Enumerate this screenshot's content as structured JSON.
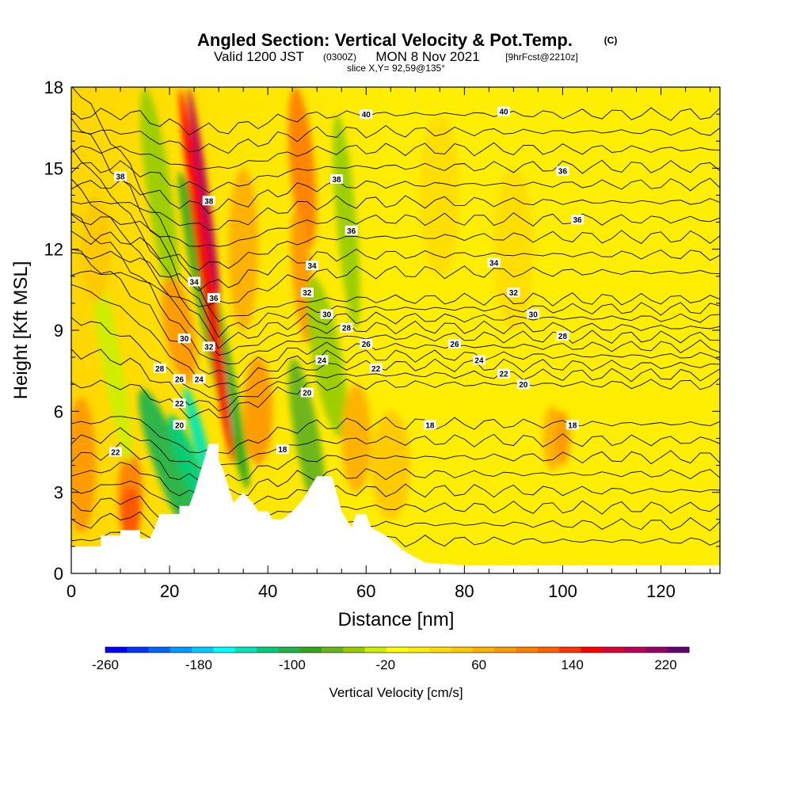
{
  "header": {
    "title_main": "Angled Section: Vertical Velocity & Pot.Temp.",
    "title_suffix": "(C)",
    "valid_1": "Valid 1200 JST",
    "valid_2": "(0300Z)",
    "valid_3": "MON 8 Nov 2021",
    "valid_4": "[9hrFcst@2210z]",
    "slice": "slice X,Y= 92,59@135°"
  },
  "chart_data": {
    "type": "heatmap",
    "xlabel": "Distance [nm]",
    "ylabel": "Height [Kft MSL]",
    "xlim": [
      0,
      132
    ],
    "ylim": [
      0,
      18
    ],
    "x_ticks": [
      0,
      20,
      40,
      60,
      80,
      100,
      120
    ],
    "y_ticks": [
      0,
      3,
      6,
      9,
      12,
      15,
      18
    ],
    "colorbar": {
      "label": "Vertical Velocity [cm/s]",
      "range": [
        -260,
        240
      ],
      "tick_values": [
        -260,
        -180,
        -100,
        -20,
        60,
        140,
        220
      ],
      "colors": [
        "#0000ff",
        "#0033ff",
        "#0066ff",
        "#0099ff",
        "#00ccff",
        "#00ffff",
        "#00e6b8",
        "#00cc7a",
        "#22b34d",
        "#33a61a",
        "#66b31a",
        "#99cc00",
        "#ccee00",
        "#ffff00",
        "#ffee00",
        "#ffdd00",
        "#ffc800",
        "#ffb000",
        "#ff9900",
        "#ff8000",
        "#ff6000",
        "#ff3300",
        "#ff0000",
        "#dd0033",
        "#bb0055",
        "#990066",
        "#660077"
      ]
    },
    "contour_labels": [
      {
        "x": 10,
        "y": 14.7,
        "label": "38"
      },
      {
        "x": 60,
        "y": 17.0,
        "label": "40"
      },
      {
        "x": 88,
        "y": 17.1,
        "label": "40"
      },
      {
        "x": 100,
        "y": 14.9,
        "label": "36"
      },
      {
        "x": 54,
        "y": 14.6,
        "label": "38"
      },
      {
        "x": 28,
        "y": 13.8,
        "label": "38"
      },
      {
        "x": 57,
        "y": 12.7,
        "label": "36"
      },
      {
        "x": 103,
        "y": 13.1,
        "label": "36"
      },
      {
        "x": 49,
        "y": 11.4,
        "label": "34"
      },
      {
        "x": 86,
        "y": 11.5,
        "label": "34"
      },
      {
        "x": 25,
        "y": 10.8,
        "label": "34"
      },
      {
        "x": 29,
        "y": 10.2,
        "label": "36"
      },
      {
        "x": 48,
        "y": 10.4,
        "label": "32"
      },
      {
        "x": 90,
        "y": 10.4,
        "label": "32"
      },
      {
        "x": 52,
        "y": 9.6,
        "label": "30"
      },
      {
        "x": 94,
        "y": 9.6,
        "label": "30"
      },
      {
        "x": 23,
        "y": 8.7,
        "label": "30"
      },
      {
        "x": 56,
        "y": 9.1,
        "label": "28"
      },
      {
        "x": 100,
        "y": 8.8,
        "label": "28"
      },
      {
        "x": 28,
        "y": 8.4,
        "label": "32"
      },
      {
        "x": 60,
        "y": 8.5,
        "label": "26"
      },
      {
        "x": 78,
        "y": 8.5,
        "label": "26"
      },
      {
        "x": 51,
        "y": 7.9,
        "label": "24"
      },
      {
        "x": 83,
        "y": 7.9,
        "label": "24"
      },
      {
        "x": 18,
        "y": 7.6,
        "label": "28"
      },
      {
        "x": 62,
        "y": 7.6,
        "label": "22"
      },
      {
        "x": 88,
        "y": 7.4,
        "label": "22"
      },
      {
        "x": 22,
        "y": 7.2,
        "label": "26"
      },
      {
        "x": 26,
        "y": 7.2,
        "label": "24"
      },
      {
        "x": 48,
        "y": 6.7,
        "label": "20"
      },
      {
        "x": 92,
        "y": 7.0,
        "label": "20"
      },
      {
        "x": 22,
        "y": 6.3,
        "label": "22"
      },
      {
        "x": 22,
        "y": 5.5,
        "label": "20"
      },
      {
        "x": 73,
        "y": 5.5,
        "label": "18"
      },
      {
        "x": 102,
        "y": 5.5,
        "label": "18"
      },
      {
        "x": 43,
        "y": 4.6,
        "label": "18"
      },
      {
        "x": 9,
        "y": 4.5,
        "label": "22"
      }
    ]
  }
}
